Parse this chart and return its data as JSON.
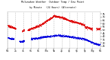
{
  "title_line1": "Milwaukee Weather  Outdoor Temp / Dew Point",
  "title_line2": "by Minute   (24 Hours) (Alternate)",
  "bg_color": "#ffffff",
  "plot_bg_color": "#ffffff",
  "text_color": "#000000",
  "grid_color": "#aaaaaa",
  "temp_color": "#dd0000",
  "dew_color": "#0000dd",
  "ylim": [
    22,
    78
  ],
  "xlim": [
    0,
    1440
  ],
  "ytick_positions": [
    25,
    30,
    35,
    40,
    45,
    50,
    55,
    60,
    65,
    70,
    75
  ],
  "ytick_labels": [
    "25",
    "30",
    "35",
    "40",
    "45",
    "50",
    "55",
    "60",
    "65",
    "70",
    "75"
  ],
  "xtick_positions": [
    0,
    120,
    240,
    360,
    480,
    600,
    720,
    840,
    960,
    1080,
    1200,
    1320,
    1440
  ],
  "xtick_labels": [
    "Mn",
    "2a",
    "4a",
    "6a",
    "8a",
    "10a",
    "Nn",
    "2p",
    "4p",
    "6p",
    "8p",
    "10p",
    "Mn"
  ],
  "temp_segments": [
    {
      "x_start": 0,
      "x_end": 130,
      "y_start": 57,
      "y_end": 52
    },
    {
      "x_start": 220,
      "x_end": 260,
      "y_start": 49,
      "y_end": 50
    },
    {
      "x_start": 310,
      "x_end": 510,
      "y_start": 50,
      "y_end": 58
    },
    {
      "x_start": 510,
      "x_end": 720,
      "y_start": 58,
      "y_end": 72
    },
    {
      "x_start": 720,
      "x_end": 840,
      "y_start": 72,
      "y_end": 70
    },
    {
      "x_start": 840,
      "x_end": 960,
      "y_start": 70,
      "y_end": 65
    },
    {
      "x_start": 960,
      "x_end": 1200,
      "y_start": 65,
      "y_end": 58
    },
    {
      "x_start": 1200,
      "x_end": 1320,
      "y_start": 55,
      "y_end": 52
    },
    {
      "x_start": 1380,
      "x_end": 1440,
      "y_start": 52,
      "y_end": 52
    }
  ],
  "dew_segments": [
    {
      "x_start": 0,
      "x_end": 100,
      "y_start": 38,
      "y_end": 36
    },
    {
      "x_start": 180,
      "x_end": 260,
      "y_start": 32,
      "y_end": 33
    },
    {
      "x_start": 360,
      "x_end": 600,
      "y_start": 36,
      "y_end": 40
    },
    {
      "x_start": 600,
      "x_end": 780,
      "y_start": 40,
      "y_end": 42
    },
    {
      "x_start": 780,
      "x_end": 960,
      "y_start": 42,
      "y_end": 40
    },
    {
      "x_start": 960,
      "x_end": 1200,
      "y_start": 40,
      "y_end": 36
    },
    {
      "x_start": 1200,
      "x_end": 1380,
      "y_start": 36,
      "y_end": 28
    },
    {
      "x_start": 1380,
      "x_end": 1440,
      "y_start": 28,
      "y_end": 27
    }
  ]
}
